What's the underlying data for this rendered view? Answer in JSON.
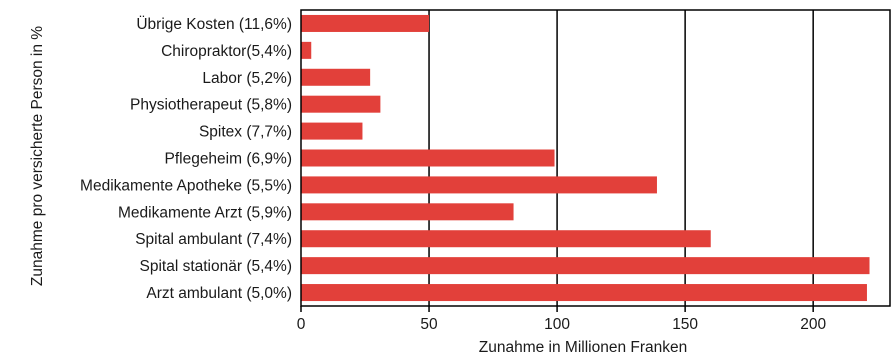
{
  "chart_data": {
    "type": "bar",
    "orientation": "horizontal",
    "title": "",
    "xlabel": "Zunahme in Millionen Franken",
    "ylabel": "Zunahme pro versicherte Person in %",
    "categories": [
      "Übrige Kosten (11,6%)",
      "Chiropraktor(5,4%)",
      "Labor (5,2%)",
      "Physiotherapeut (5,8%)",
      "Spitex (7,7%)",
      "Pflegeheim (6,9%)",
      "Medikamente Apotheke (5,5%)",
      "Medikamente Arzt (5,9%)",
      "Spital ambulant (7,4%)",
      "Spital stationär (5,4%)",
      "Arzt ambulant (5,0%)"
    ],
    "values": [
      50,
      4,
      27,
      31,
      24,
      99,
      139,
      83,
      160,
      222,
      221
    ],
    "xlim": [
      0,
      230
    ],
    "xticks": [
      0,
      50,
      100,
      150,
      200
    ],
    "grid": "vertical",
    "legend": "none",
    "bar_color": "#e2403a"
  }
}
